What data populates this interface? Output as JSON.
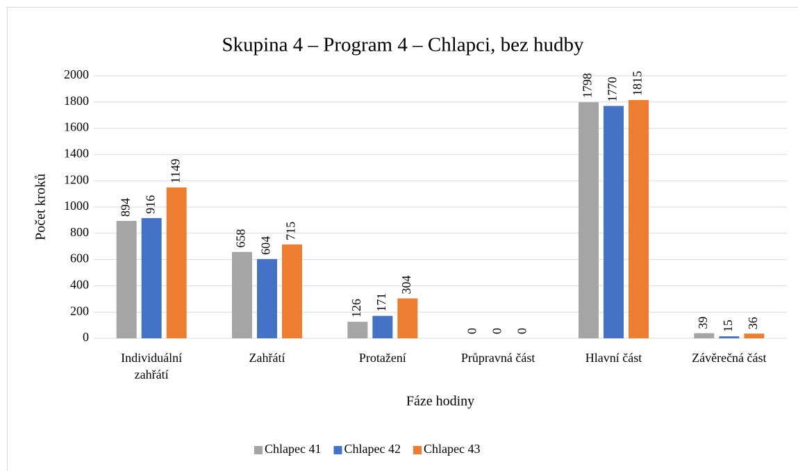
{
  "chart_data": {
    "type": "bar",
    "title": "Skupina 4 – Program 4 – Chlapci, bez hudby",
    "x_label": "Fáze hodiny",
    "y_label": "Počet kroků",
    "categories": [
      "Individuální zahřátí",
      "Zahřátí",
      "Protažení",
      "Průpravná část",
      "Hlavní část",
      "Závěrečná část"
    ],
    "series": [
      {
        "name": "Chlapec 41",
        "color": "#a5a5a5",
        "values": [
          894,
          658,
          126,
          0,
          1798,
          39
        ]
      },
      {
        "name": "Chlapec 42",
        "color": "#4472c4",
        "values": [
          916,
          604,
          171,
          0,
          1770,
          15
        ]
      },
      {
        "name": "Chlapec 43",
        "color": "#ed7d31",
        "values": [
          1149,
          715,
          304,
          0,
          1815,
          36
        ]
      }
    ],
    "ylim": [
      0,
      2000
    ],
    "yticks": [
      0,
      200,
      400,
      600,
      800,
      1000,
      1200,
      1400,
      1600,
      1800,
      2000
    ],
    "grid": true,
    "legend": "bottom"
  }
}
